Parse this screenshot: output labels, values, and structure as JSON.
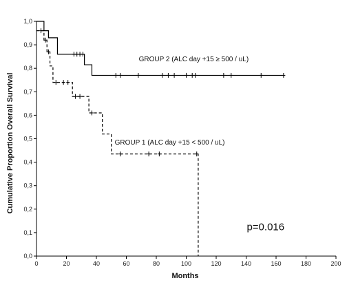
{
  "chart_data": {
    "type": "line",
    "subtype": "kaplan-meier",
    "title": "",
    "xlabel": "Months",
    "ylabel": "Cumulative Proportion Overall Survival",
    "xlim": [
      0,
      200
    ],
    "ylim": [
      0,
      1
    ],
    "xticks": [
      "0",
      "20",
      "40",
      "60",
      "80",
      "100",
      "120",
      "140",
      "160",
      "180",
      "200"
    ],
    "yticks": [
      "0,0",
      "0,1",
      "0,2",
      "0,3",
      "0,4",
      "0,5",
      "0,6",
      "0,7",
      "0,8",
      "0,9",
      "1,0"
    ],
    "grid": false,
    "legend": "none",
    "series": [
      {
        "name": "GROUP 2 (ALC day +15 ≥ 500 / uL)",
        "line_style": "solid",
        "color": "#000000",
        "steps": [
          [
            0,
            1.0
          ],
          [
            5,
            0.96
          ],
          [
            8,
            0.93
          ],
          [
            14,
            0.86
          ],
          [
            32,
            0.815
          ],
          [
            37,
            0.77
          ],
          [
            165,
            0.77
          ]
        ],
        "censored": [
          [
            25,
            0.86
          ],
          [
            27,
            0.86
          ],
          [
            29,
            0.86
          ],
          [
            31,
            0.86
          ],
          [
            53,
            0.77
          ],
          [
            56,
            0.77
          ],
          [
            68,
            0.77
          ],
          [
            84,
            0.77
          ],
          [
            88,
            0.77
          ],
          [
            92,
            0.77
          ],
          [
            100,
            0.77
          ],
          [
            104,
            0.77
          ],
          [
            106,
            0.77
          ],
          [
            125,
            0.77
          ],
          [
            130,
            0.77
          ],
          [
            150,
            0.77
          ],
          [
            165,
            0.77
          ]
        ]
      },
      {
        "name": "GROUP 1 (ALC day +15 < 500 / uL)",
        "line_style": "dashed",
        "color": "#000000",
        "steps": [
          [
            0,
            0.96
          ],
          [
            5,
            0.92
          ],
          [
            7,
            0.87
          ],
          [
            9,
            0.81
          ],
          [
            11,
            0.74
          ],
          [
            24,
            0.68
          ],
          [
            35,
            0.61
          ],
          [
            44,
            0.52
          ],
          [
            50,
            0.435
          ],
          [
            108,
            0.0
          ]
        ],
        "censored": [
          [
            3,
            0.96
          ],
          [
            6,
            0.92
          ],
          [
            8,
            0.87
          ],
          [
            13,
            0.74
          ],
          [
            18,
            0.74
          ],
          [
            21,
            0.74
          ],
          [
            26,
            0.68
          ],
          [
            29,
            0.68
          ],
          [
            37,
            0.61
          ],
          [
            56,
            0.435
          ],
          [
            75,
            0.435
          ],
          [
            82,
            0.435
          ],
          [
            107,
            0.435
          ]
        ]
      }
    ],
    "annotations": [
      {
        "text": "GROUP 2 (ALC day +15 ≥ 500 / uL)",
        "x": 105,
        "y": 0.83
      },
      {
        "text": "GROUP 1 (ALC day +15 < 500 / uL)",
        "x": 89,
        "y": 0.475
      },
      {
        "text": "p=0.016",
        "x": 153,
        "y": 0.11
      }
    ]
  }
}
